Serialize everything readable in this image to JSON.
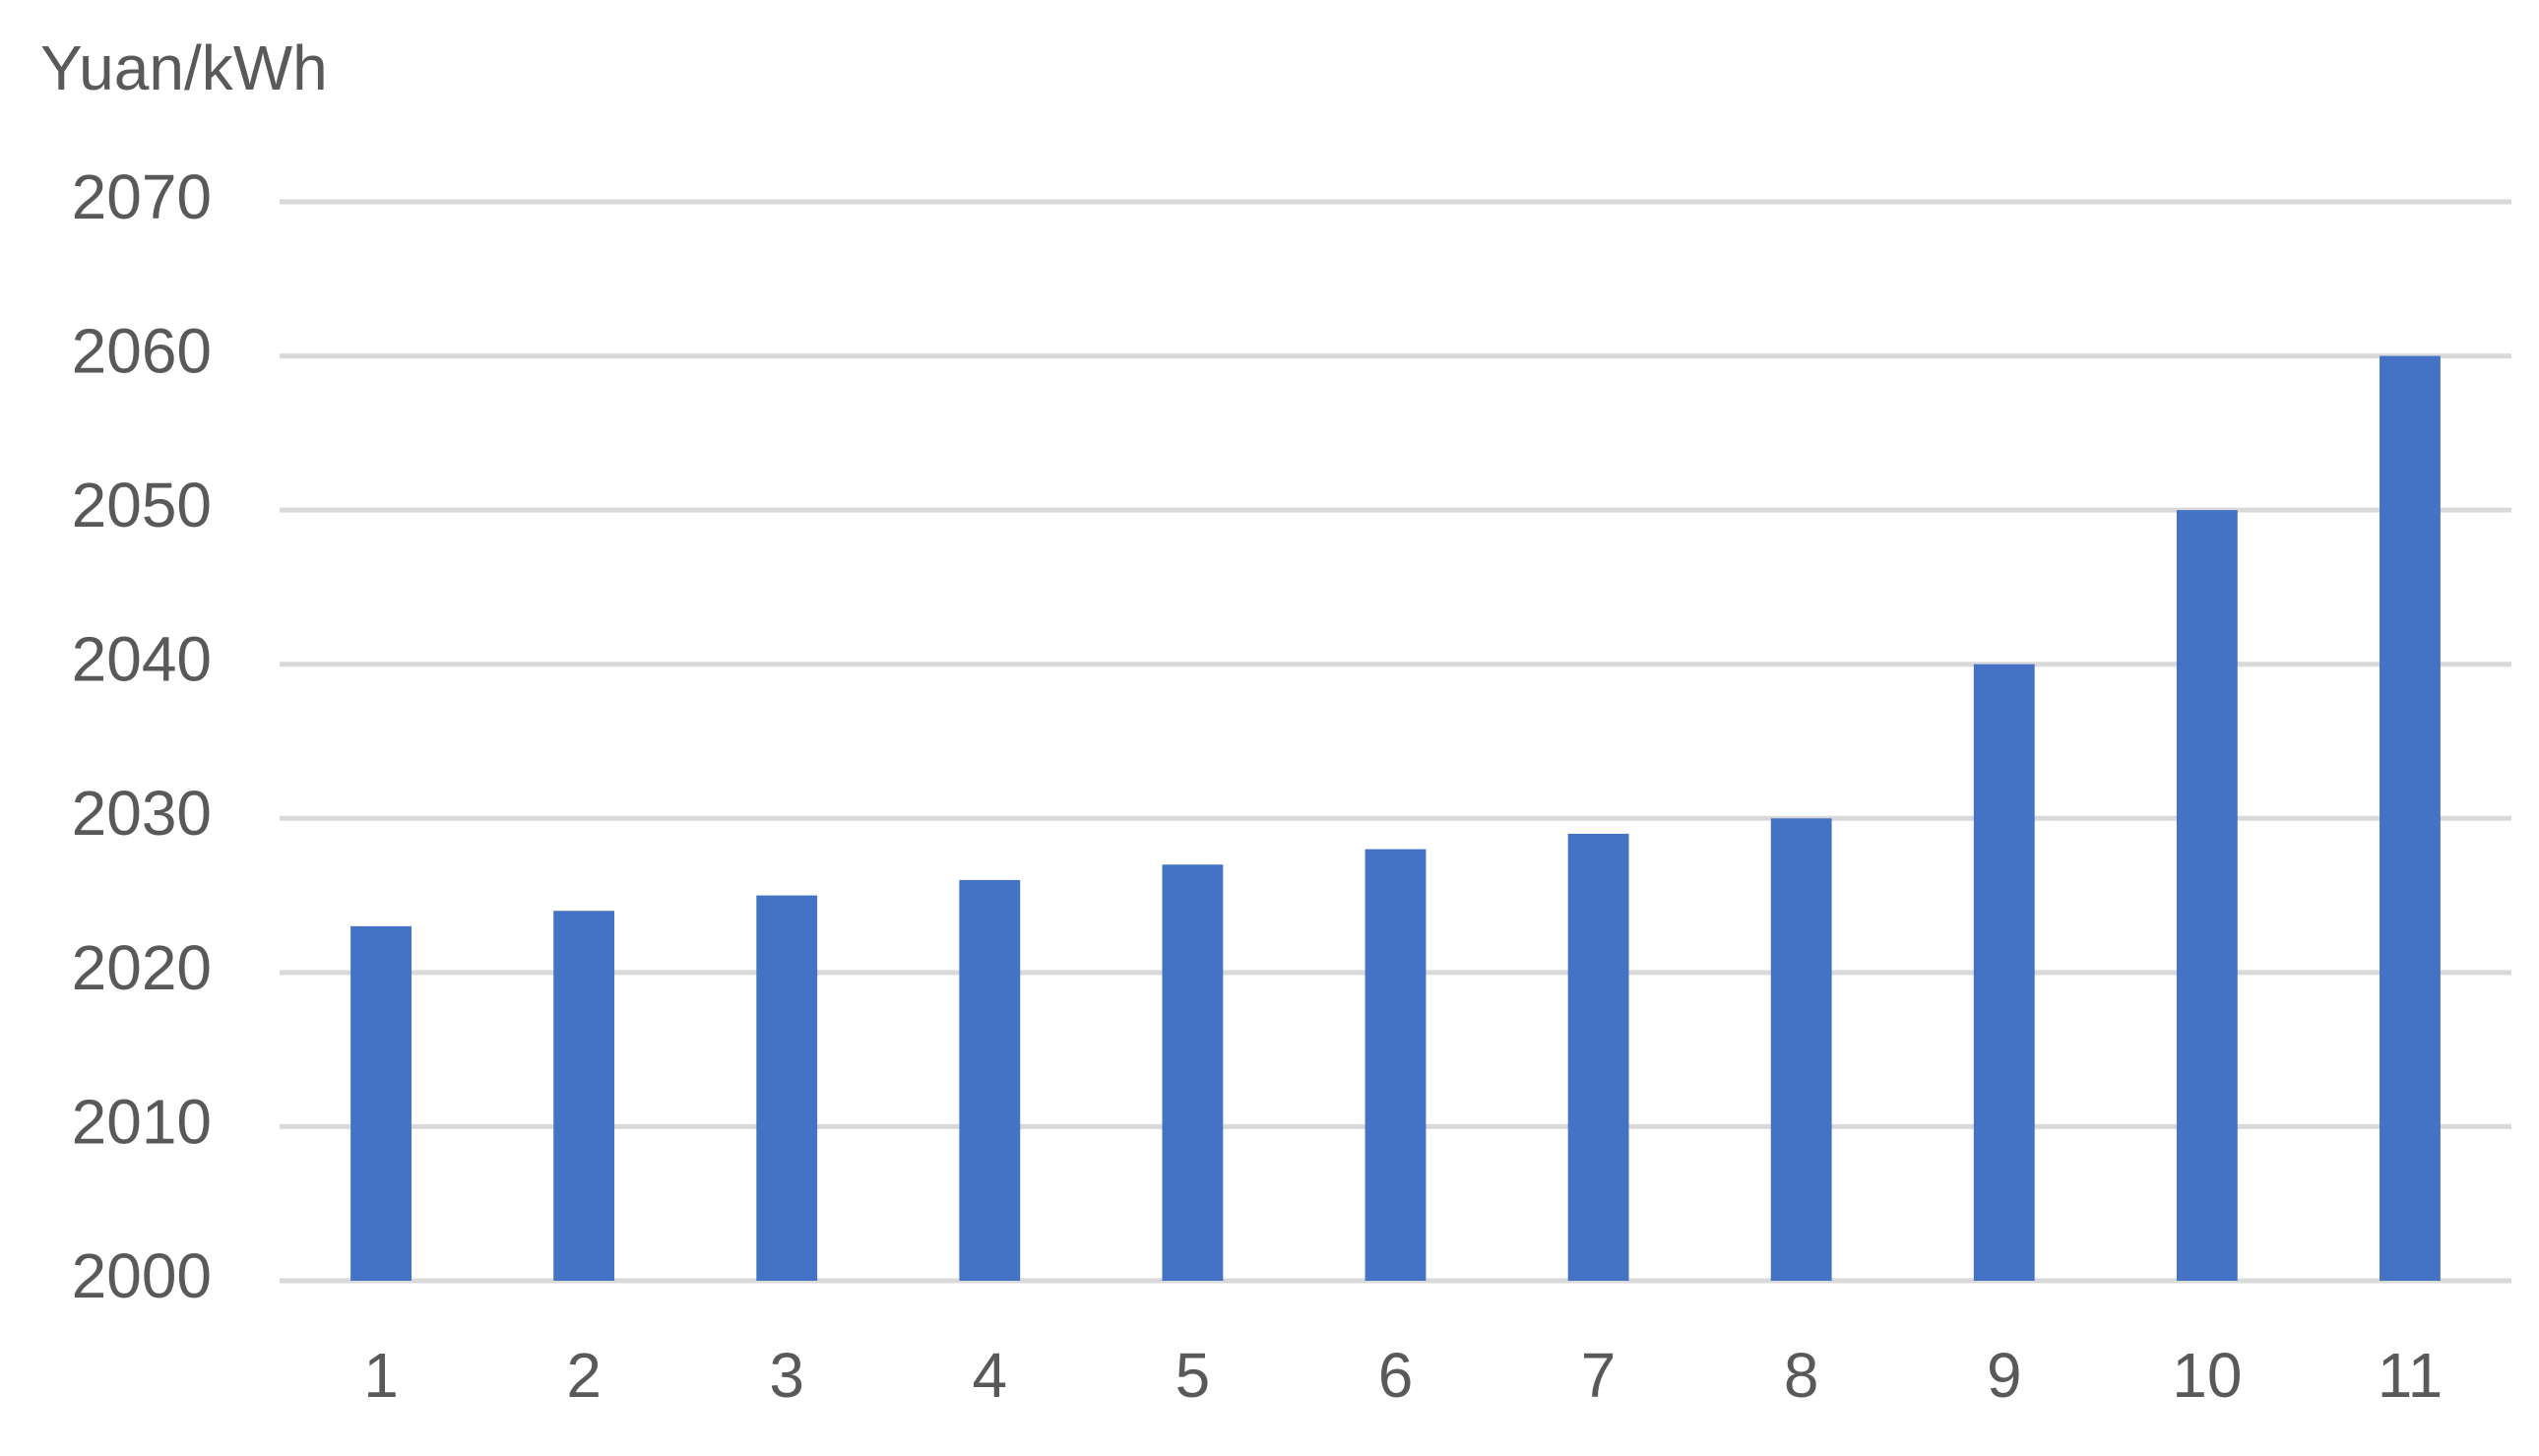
{
  "chart_data": {
    "type": "bar",
    "y_label": "Yuan/kWh",
    "categories": [
      "1",
      "2",
      "3",
      "4",
      "5",
      "6",
      "7",
      "8",
      "9",
      "10",
      "11"
    ],
    "values": [
      2023,
      2024,
      2025,
      2026,
      2027,
      2028,
      2029,
      2030,
      2040,
      2050,
      2060
    ],
    "color": "#4472c4",
    "ylim": [
      2000,
      2070
    ],
    "yticks": [
      2000,
      2010,
      2020,
      2030,
      2040,
      2050,
      2060,
      2070
    ],
    "grid": true
  }
}
